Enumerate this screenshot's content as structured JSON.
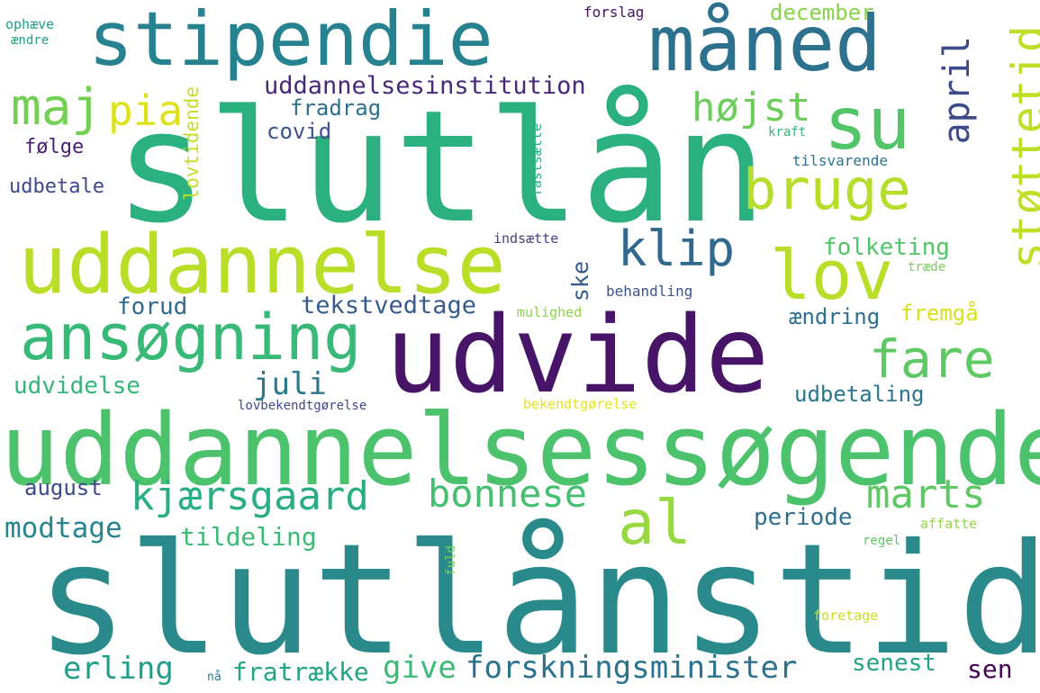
{
  "words": [
    {
      "text": "slutlånstid",
      "color": "#2a8a8b"
    },
    {
      "text": "slutlån",
      "color": "#2bb07f"
    },
    {
      "text": "udvide",
      "color": "#481467"
    },
    {
      "text": "uddannelsessøgende",
      "color": "#4cc26c"
    },
    {
      "text": "uddannelse",
      "color": "#b9de28"
    },
    {
      "text": "stipendie",
      "color": "#26828e"
    },
    {
      "text": "måned",
      "color": "#2c728e"
    },
    {
      "text": "ansøgning",
      "color": "#38b977"
    },
    {
      "text": "su",
      "color": "#52c569"
    },
    {
      "text": "lov",
      "color": "#b8de29"
    },
    {
      "text": "bruge",
      "color": "#b5de2b"
    },
    {
      "text": "støttetid",
      "color": "#bddf26"
    },
    {
      "text": "klip",
      "color": "#31688e"
    },
    {
      "text": "al",
      "color": "#95d840"
    },
    {
      "text": "maj",
      "color": "#73d055"
    },
    {
      "text": "pia",
      "color": "#dde318"
    },
    {
      "text": "fare",
      "color": "#5ec962"
    },
    {
      "text": "kjærsgaard",
      "color": "#29af7f"
    },
    {
      "text": "bonnese",
      "color": "#44bf70"
    },
    {
      "text": "marts",
      "color": "#5ec962"
    },
    {
      "text": "april",
      "color": "#3e4989"
    },
    {
      "text": "højst",
      "color": "#6ccd5a"
    },
    {
      "text": "uddannelsesinstitution",
      "color": "#482878"
    },
    {
      "text": "forskningsminister",
      "color": "#2c728e"
    },
    {
      "text": "give",
      "color": "#3bbb75"
    },
    {
      "text": "erling",
      "color": "#1f9e89"
    },
    {
      "text": "fratrække",
      "color": "#21a585"
    },
    {
      "text": "tekstvedtage",
      "color": "#375b8d"
    },
    {
      "text": "juli",
      "color": "#2a788e"
    },
    {
      "text": "folketing",
      "color": "#52c569"
    },
    {
      "text": "december",
      "color": "#86d549"
    },
    {
      "text": "fradrag",
      "color": "#2d708e"
    },
    {
      "text": "covid",
      "color": "#3b528b"
    },
    {
      "text": "følge",
      "color": "#481f70"
    },
    {
      "text": "udbetale",
      "color": "#3e4989"
    },
    {
      "text": "lovtidende",
      "color": "#c2df23"
    },
    {
      "text": "udvidelse",
      "color": "#34b679"
    },
    {
      "text": "forud",
      "color": "#31688e"
    },
    {
      "text": "ske",
      "color": "#355e8d"
    },
    {
      "text": "modtage",
      "color": "#25858e"
    },
    {
      "text": "tildeling",
      "color": "#3bbb75"
    },
    {
      "text": "august",
      "color": "#3e4a89"
    },
    {
      "text": "periode",
      "color": "#2d708e"
    },
    {
      "text": "ændring",
      "color": "#2d708e"
    },
    {
      "text": "fremgå",
      "color": "#d8e219"
    },
    {
      "text": "udbetaling",
      "color": "#2a768e"
    },
    {
      "text": "senest",
      "color": "#20a386"
    },
    {
      "text": "sen",
      "color": "#440154"
    },
    {
      "text": "forslag",
      "color": "#471365"
    },
    {
      "text": "ophæve",
      "color": "#1fa188"
    },
    {
      "text": "ændre",
      "color": "#1fa188"
    },
    {
      "text": "kraft",
      "color": "#35b779"
    },
    {
      "text": "tilsvarende",
      "color": "#2c728e"
    },
    {
      "text": "fastsætte",
      "color": "#27ad81"
    },
    {
      "text": "indsætte",
      "color": "#433e85"
    },
    {
      "text": "træde",
      "color": "#74d055"
    },
    {
      "text": "behandling",
      "color": "#3b528b"
    },
    {
      "text": "mulighed",
      "color": "#8ed645"
    },
    {
      "text": "lovbekendtgørelse",
      "color": "#3e4a89"
    },
    {
      "text": "bekendtgørelse",
      "color": "#e5e419"
    },
    {
      "text": "affatte",
      "color": "#8fd744"
    },
    {
      "text": "regel",
      "color": "#5ec962"
    },
    {
      "text": "fuld",
      "color": "#7ad151"
    },
    {
      "text": "foretage",
      "color": "#c8e020"
    },
    {
      "text": "nå",
      "color": "#26828e"
    }
  ]
}
